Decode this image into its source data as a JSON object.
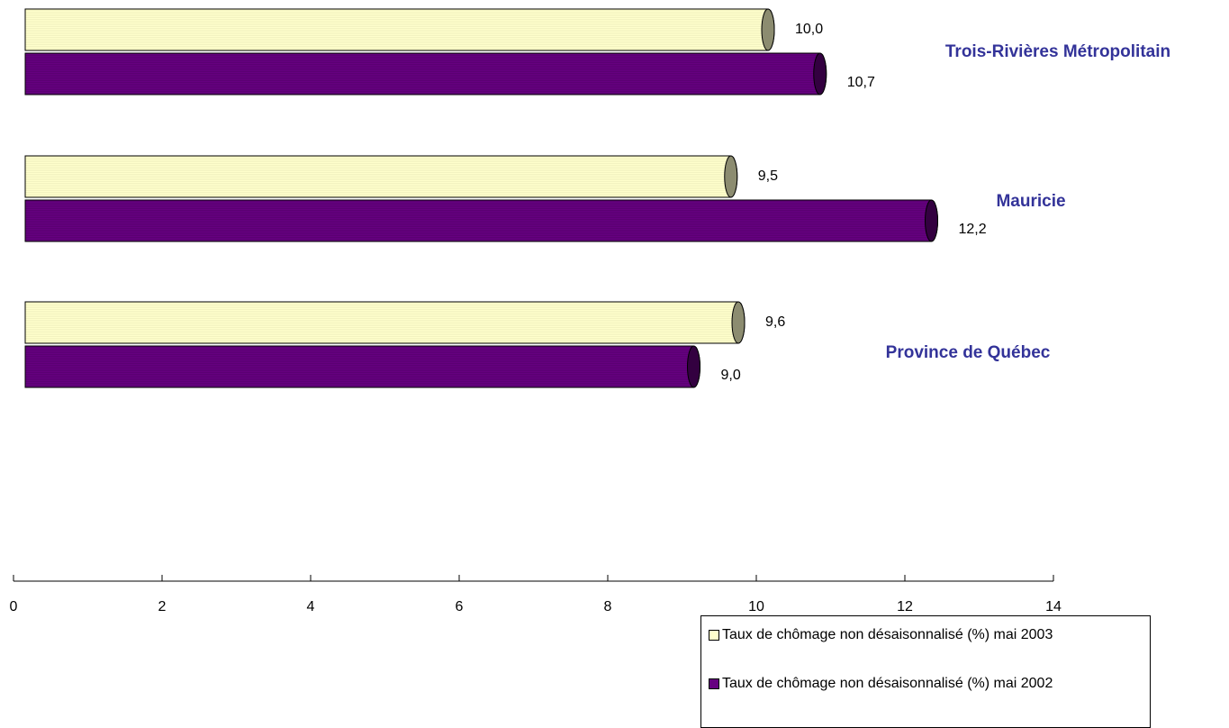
{
  "chart_data": {
    "type": "bar",
    "orientation": "horizontal",
    "categories": [
      "Trois-Rivières Métropolitain",
      "Mauricie",
      "Province de Québec"
    ],
    "series": [
      {
        "name": "Taux de chômage non désaisonnalisé  (%) mai 2003",
        "values": [
          10.0,
          9.5,
          9.6
        ],
        "labels": [
          "10,0",
          "9,5",
          "9,6"
        ],
        "color": "#FFFFCC",
        "cap_color": "#8C8C70"
      },
      {
        "name": "Taux de chômage non désaisonnalisé  (%) mai 2002",
        "values": [
          10.7,
          12.2,
          9.0
        ],
        "labels": [
          "10,7",
          "12,2",
          "9,0"
        ],
        "color": "#660080",
        "cap_color": "#330040"
      }
    ],
    "xlim": [
      0,
      14
    ],
    "xticks": [
      "0",
      "2",
      "4",
      "6",
      "8",
      "10",
      "12",
      "14"
    ],
    "grid": false,
    "legend_position": "bottom-right"
  }
}
